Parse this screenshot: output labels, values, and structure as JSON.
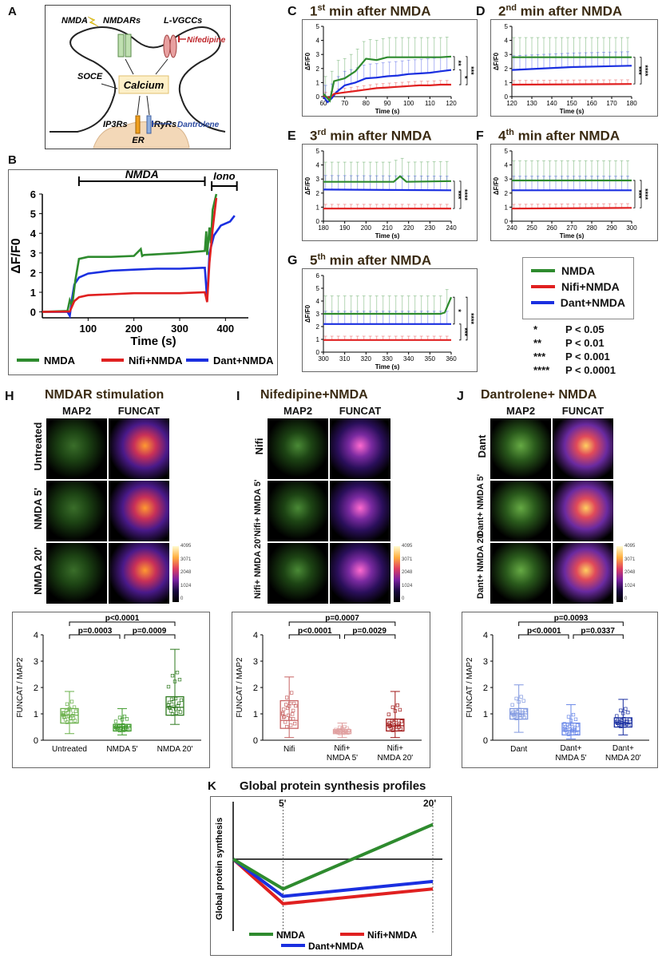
{
  "colors": {
    "nmda": "#2e8b2e",
    "nifi": "#e02020",
    "dant": "#1a2fe0",
    "title": "#3a2a12",
    "nifi_text": "#c0282d",
    "dant_text": "#2b4aa0"
  },
  "panelA": {
    "letter": "A",
    "labels": {
      "nmda": "NMDA",
      "nmdars": "NMDARs",
      "lvgccs": "L-VGCCs",
      "nifedipine": "Nifedipine",
      "soce": "SOCE",
      "calcium": "Calcium",
      "ip3rs": "IP3Rs",
      "ryrs": "RyRs",
      "dantrolene": "Dantrolene",
      "er": "ER"
    }
  },
  "panelB": {
    "letter": "B",
    "bar_labels": {
      "nmda": "NMDA",
      "iono": "Iono"
    },
    "ylabel": "ΔF/F0",
    "xlabel": "Time (s)",
    "legend": [
      "NMDA",
      "Nifi+NMDA",
      "Dant+NMDA"
    ],
    "chart_data": {
      "type": "line",
      "xlim": [
        0,
        450
      ],
      "ylim": [
        -0.3,
        6
      ],
      "xticks": [
        100,
        200,
        300,
        400
      ],
      "yticks": [
        0,
        1,
        2,
        3,
        4,
        5,
        6
      ],
      "series": [
        {
          "name": "NMDA",
          "x": [
            0,
            55,
            60,
            65,
            72,
            80,
            100,
            150,
            200,
            215,
            218,
            222,
            300,
            355,
            358,
            360,
            365,
            368,
            372,
            380
          ],
          "y": [
            0,
            0.05,
            0.6,
            0.3,
            1.6,
            2.7,
            2.8,
            2.8,
            2.85,
            3.2,
            2.85,
            2.9,
            3.0,
            3.1,
            4.1,
            2.9,
            4.3,
            3.5,
            5.2,
            6.0
          ]
        },
        {
          "name": "Nifi+NMDA",
          "x": [
            0,
            60,
            70,
            80,
            100,
            150,
            200,
            250,
            300,
            355,
            360,
            365,
            372,
            380
          ],
          "y": [
            0,
            0.02,
            0.55,
            0.75,
            0.85,
            0.9,
            0.95,
            0.95,
            0.95,
            1.0,
            0.5,
            2.5,
            4.2,
            5.8
          ]
        },
        {
          "name": "Dant+NMDA",
          "x": [
            0,
            55,
            60,
            65,
            70,
            80,
            100,
            150,
            200,
            250,
            300,
            355,
            360,
            365,
            375,
            390,
            410,
            420
          ],
          "y": [
            0,
            0,
            -0.2,
            0.7,
            1.4,
            1.75,
            1.95,
            2.1,
            2.15,
            2.2,
            2.2,
            2.25,
            0.6,
            3.0,
            3.9,
            4.4,
            4.6,
            4.9
          ]
        }
      ]
    }
  },
  "panelsCtoG": [
    {
      "letter": "C",
      "ord": "1",
      "sup": "st",
      "rest": " min after NMDA",
      "ylabel": "ΔF/F0",
      "xlabel": "Time (s)",
      "chart_data": {
        "type": "line",
        "xlim": [
          60,
          120
        ],
        "ylim": [
          0,
          5
        ],
        "xticks": [
          60,
          70,
          80,
          90,
          100,
          110,
          120
        ],
        "yticks": [
          0,
          1,
          2,
          3,
          4,
          5
        ],
        "series": [
          {
            "name": "NMDA",
            "x": [
              60,
              63,
              65,
              70,
              75,
              80,
              85,
              90,
              95,
              100,
              105,
              110,
              115,
              120
            ],
            "y": [
              0.2,
              -0.3,
              1.1,
              1.3,
              1.8,
              2.7,
              2.6,
              2.8,
              2.8,
              2.8,
              2.8,
              2.8,
              2.8,
              2.85
            ]
          },
          {
            "name": "Nifi+NMDA",
            "x": [
              60,
              63,
              65,
              70,
              75,
              80,
              85,
              90,
              95,
              100,
              105,
              110,
              115,
              120
            ],
            "y": [
              0.05,
              -0.1,
              0.2,
              0.3,
              0.4,
              0.5,
              0.6,
              0.65,
              0.7,
              0.75,
              0.8,
              0.8,
              0.85,
              0.85
            ]
          },
          {
            "name": "Dant+NMDA",
            "x": [
              60,
              62,
              64,
              66,
              70,
              75,
              80,
              85,
              90,
              95,
              100,
              105,
              110,
              115,
              120
            ],
            "y": [
              0,
              -0.4,
              -0.1,
              0.3,
              0.8,
              1.0,
              1.3,
              1.35,
              1.45,
              1.5,
              1.6,
              1.65,
              1.7,
              1.8,
              1.9
            ]
          }
        ],
        "sig": [
          "**",
          "*",
          "***"
        ]
      }
    },
    {
      "letter": "D",
      "ord": "2",
      "sup": "nd",
      "rest": " min after NMDA",
      "ylabel": "ΔF/F0",
      "xlabel": "Time (s)",
      "chart_data": {
        "type": "line",
        "xlim": [
          120,
          180
        ],
        "ylim": [
          0,
          5
        ],
        "xticks": [
          120,
          130,
          140,
          150,
          160,
          170,
          180
        ],
        "yticks": [
          0,
          1,
          2,
          3,
          4,
          5
        ],
        "series": [
          {
            "name": "NMDA",
            "x": [
              120,
              180
            ],
            "y": [
              2.8,
              2.8
            ]
          },
          {
            "name": "Nifi+NMDA",
            "x": [
              120,
              180
            ],
            "y": [
              0.85,
              0.9
            ]
          },
          {
            "name": "Dant+NMDA",
            "x": [
              120,
              150,
              180
            ],
            "y": [
              1.9,
              2.1,
              2.2
            ]
          }
        ],
        "sig": [
          "***",
          "****"
        ]
      }
    },
    {
      "letter": "E",
      "ord": "3",
      "sup": "rd",
      "rest": " min after NMDA",
      "ylabel": "ΔF/F0",
      "xlabel": "Time (s)",
      "chart_data": {
        "type": "line",
        "xlim": [
          180,
          240
        ],
        "ylim": [
          0,
          5
        ],
        "xticks": [
          180,
          190,
          200,
          210,
          220,
          230,
          240
        ],
        "yticks": [
          0,
          1,
          2,
          3,
          4,
          5
        ],
        "series": [
          {
            "name": "NMDA",
            "x": [
              180,
              213,
              216,
              219,
              240
            ],
            "y": [
              2.8,
              2.8,
              3.2,
              2.8,
              2.85
            ]
          },
          {
            "name": "Nifi+NMDA",
            "x": [
              180,
              240
            ],
            "y": [
              0.9,
              0.9
            ]
          },
          {
            "name": "Dant+NMDA",
            "x": [
              180,
              240
            ],
            "y": [
              2.25,
              2.2
            ]
          }
        ],
        "sig": [
          "***",
          "****"
        ]
      }
    },
    {
      "letter": "F",
      "ord": "4",
      "sup": "th",
      "rest": " min after NMDA",
      "ylabel": "ΔF/F0",
      "xlabel": "Time (s)",
      "chart_data": {
        "type": "line",
        "xlim": [
          240,
          300
        ],
        "ylim": [
          0,
          5
        ],
        "xticks": [
          240,
          250,
          260,
          270,
          280,
          290,
          300
        ],
        "yticks": [
          0,
          1,
          2,
          3,
          4,
          5
        ],
        "series": [
          {
            "name": "NMDA",
            "x": [
              240,
              300
            ],
            "y": [
              2.9,
              2.9
            ]
          },
          {
            "name": "Nifi+NMDA",
            "x": [
              240,
              300
            ],
            "y": [
              0.9,
              0.95
            ]
          },
          {
            "name": "Dant+NMDA",
            "x": [
              240,
              300
            ],
            "y": [
              2.2,
              2.2
            ]
          }
        ],
        "sig": [
          "***",
          "****"
        ]
      }
    },
    {
      "letter": "G",
      "ord": "5",
      "sup": "th",
      "rest": " min after NMDA",
      "ylabel": "ΔF/F0",
      "xlabel": "Time (s)",
      "chart_data": {
        "type": "line",
        "xlim": [
          300,
          360
        ],
        "ylim": [
          0,
          6
        ],
        "xticks": [
          300,
          310,
          320,
          330,
          340,
          350,
          360
        ],
        "yticks": [
          0,
          1,
          2,
          3,
          4,
          5,
          6
        ],
        "series": [
          {
            "name": "NMDA",
            "x": [
              300,
              355,
              357,
              360
            ],
            "y": [
              3.0,
              3.0,
              3.1,
              4.3
            ]
          },
          {
            "name": "Nifi+NMDA",
            "x": [
              300,
              360
            ],
            "y": [
              0.95,
              0.95
            ]
          },
          {
            "name": "Dant+NMDA",
            "x": [
              300,
              360
            ],
            "y": [
              2.2,
              2.2
            ]
          }
        ],
        "sig": [
          "*",
          "***",
          "****"
        ]
      }
    }
  ],
  "legendCG": [
    "NMDA",
    "Nifi+NMDA",
    "Dant+NMDA"
  ],
  "pvalues": [
    {
      "stars": "*",
      "text": "P < 0.05"
    },
    {
      "stars": "**",
      "text": "P < 0.01"
    },
    {
      "stars": "***",
      "text": "P < 0.001"
    },
    {
      "stars": "****",
      "text": "P < 0.0001"
    }
  ],
  "panelsHIJ": [
    {
      "letter": "H",
      "title": "NMDAR stimulation",
      "col1": "MAP2",
      "col2": "FUNCAT",
      "rows": [
        "Untreated",
        "NMDA 5'",
        "NMDA 20'"
      ],
      "scale": [
        "4095",
        "3071",
        "2048",
        "1024",
        "0"
      ],
      "ylabel": "FUNCAT / MAP2",
      "groups": [
        "Untreated",
        "NMDA 5'",
        "NMDA 20'"
      ],
      "pvals": [
        "p<0.0001",
        "p=0.0003",
        "p=0.0009"
      ],
      "chart_data": {
        "type": "box",
        "ylim": [
          0,
          4
        ],
        "yticks": [
          0,
          1,
          2,
          3,
          4
        ],
        "groups": [
          "Untreated",
          "NMDA 5'",
          "NMDA 20'"
        ],
        "box": [
          {
            "min": 0.25,
            "q1": 0.65,
            "median": 0.95,
            "q3": 1.2,
            "max": 1.85
          },
          {
            "min": 0.2,
            "q1": 0.35,
            "median": 0.5,
            "q3": 0.6,
            "max": 1.2
          },
          {
            "min": 0.6,
            "q1": 0.95,
            "median": 1.25,
            "q3": 1.65,
            "max": 3.45
          }
        ]
      }
    },
    {
      "letter": "I",
      "title": "Nifedipine+NMDA",
      "col1": "MAP2",
      "col2": "FUNCAT",
      "rows": [
        "Nifi",
        "Nifi+ NMDA 5'",
        "Nifi+ NMDA 20'"
      ],
      "scale": [
        "4095",
        "3071",
        "2048",
        "1024",
        "0"
      ],
      "ylabel": "FUNCAT / MAP2",
      "groups": [
        "Nifi",
        "Nifi+ NMDA 5'",
        "Nifi+ NMDA 20'"
      ],
      "pvals": [
        "p=0.0007",
        "p<0.0001",
        "p=0.0029"
      ],
      "chart_data": {
        "type": "box",
        "ylim": [
          0,
          4
        ],
        "yticks": [
          0,
          1,
          2,
          3,
          4
        ],
        "groups": [
          "Nifi",
          "Nifi+ NMDA 5'",
          "Nifi+ NMDA 20'"
        ],
        "box": [
          {
            "min": 0.1,
            "q1": 0.45,
            "median": 0.75,
            "q3": 1.5,
            "max": 2.4
          },
          {
            "min": 0.1,
            "q1": 0.25,
            "median": 0.32,
            "q3": 0.4,
            "max": 0.65
          },
          {
            "min": 0.1,
            "q1": 0.35,
            "median": 0.55,
            "q3": 0.8,
            "max": 1.85
          }
        ]
      }
    },
    {
      "letter": "J",
      "title": "Dantrolene+ NMDA",
      "col1": "MAP2",
      "col2": "FUNCAT",
      "rows": [
        "Dant",
        "Dant+ NMDA 5'",
        "Dant+ NMDA 20'"
      ],
      "scale": [
        "4095",
        "3071",
        "2048",
        "1024",
        "0"
      ],
      "ylabel": "FUNCAT / MAP2",
      "groups": [
        "Dant",
        "Dant+ NMDA 5'",
        "Dant+ NMDA 20'"
      ],
      "pvals": [
        "p=0.0093",
        "p<0.0001",
        "p=0.0337"
      ],
      "chart_data": {
        "type": "box",
        "ylim": [
          0,
          4
        ],
        "yticks": [
          0,
          1,
          2,
          3,
          4
        ],
        "groups": [
          "Dant",
          "Dant+ NMDA 5'",
          "Dant+ NMDA 20'"
        ],
        "box": [
          {
            "min": 0.3,
            "q1": 0.8,
            "median": 1.0,
            "q3": 1.2,
            "max": 2.1
          },
          {
            "min": 0.05,
            "q1": 0.2,
            "median": 0.35,
            "q3": 0.65,
            "max": 1.35
          },
          {
            "min": 0.2,
            "q1": 0.5,
            "median": 0.65,
            "q3": 0.85,
            "max": 1.55
          }
        ]
      }
    }
  ],
  "panelK": {
    "letter": "K",
    "title": "Global protein synthesis profiles",
    "ylabel": "Global protein synthesis",
    "t5": "5'",
    "t20": "20'",
    "legend": [
      "NMDA",
      "Nifi+NMDA",
      "Dant+NMDA"
    ],
    "chart_data": {
      "type": "line",
      "x": [
        0,
        5,
        20
      ],
      "ylim": [
        -1.1,
        1.1
      ],
      "series": [
        {
          "name": "NMDA",
          "y": [
            0,
            -0.6,
            0.7
          ]
        },
        {
          "name": "Nifi+NMDA",
          "y": [
            0,
            -0.9,
            -0.6
          ]
        },
        {
          "name": "Dant+NMDA",
          "y": [
            0,
            -0.75,
            -0.45
          ]
        }
      ]
    }
  }
}
